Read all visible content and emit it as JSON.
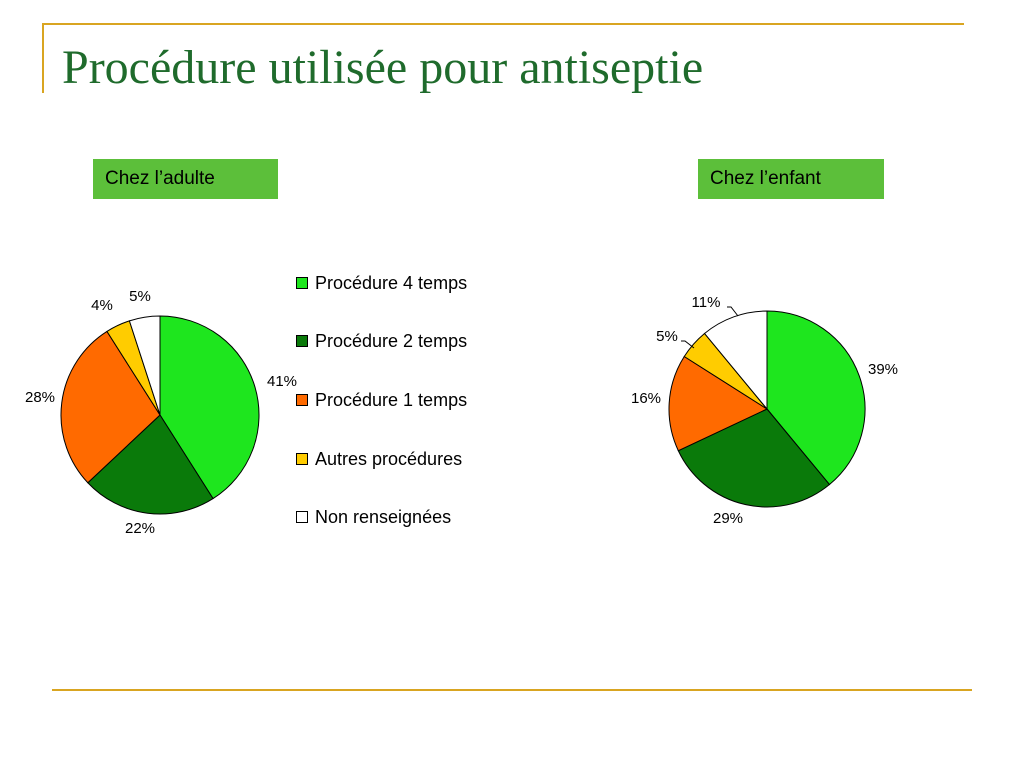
{
  "title": "Procédure utilisée pour antiseptie",
  "colors": {
    "frame": "#d9a521",
    "title": "#1f6b2c",
    "label_bg": "#5cbf3a",
    "series": [
      "#1ee61e",
      "#0a7a0a",
      "#ff6a00",
      "#ffcc00",
      "#ffffff"
    ]
  },
  "legend": [
    "Procédure 4 temps",
    "Procédure 2 temps",
    "Procédure 1 temps",
    "Autres procédures",
    "Non renseignées"
  ],
  "chart_data": [
    {
      "type": "pie",
      "label": "Chez l’adulte",
      "categories": [
        "Procédure 4 temps",
        "Procédure 2 temps",
        "Procédure 1 temps",
        "Autres procédures",
        "Non renseignées"
      ],
      "values": [
        41,
        22,
        28,
        4,
        5
      ],
      "value_labels": [
        "41%",
        "22%",
        "28%",
        "4%",
        "5%"
      ],
      "legend_position": "right"
    },
    {
      "type": "pie",
      "label": "Chez l’enfant",
      "categories": [
        "Procédure 4 temps",
        "Procédure 2 temps",
        "Procédure 1 temps",
        "Autres procédures",
        "Non renseignées"
      ],
      "values": [
        39,
        29,
        16,
        5,
        11
      ],
      "value_labels": [
        "39%",
        "29%",
        "16%",
        "5%",
        "11%"
      ],
      "legend_position": "right"
    }
  ]
}
